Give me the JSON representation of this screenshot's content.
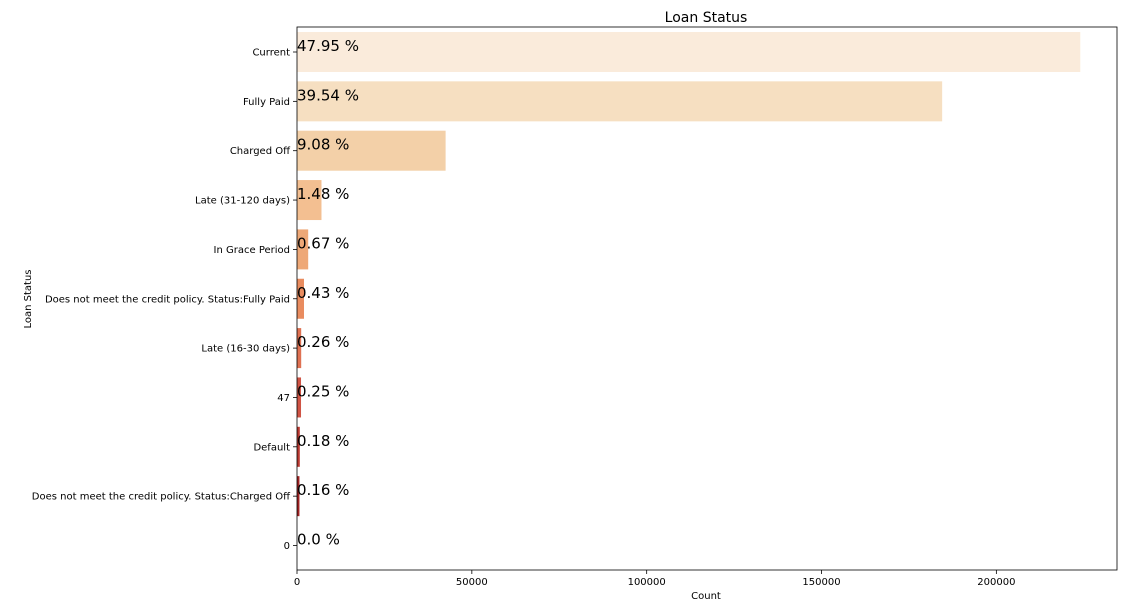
{
  "chart_data": {
    "type": "bar",
    "orientation": "horizontal",
    "title": "Loan Status",
    "xlabel": "Count",
    "ylabel": "Loan Status",
    "xlim": [
      0,
      234500
    ],
    "x_ticks": [
      0,
      50000,
      100000,
      150000,
      200000
    ],
    "grid": false,
    "categories": [
      "Current",
      "Fully Paid",
      "Charged Off",
      "Late (31-120 days)",
      "In Grace Period",
      "Does not meet the credit policy. Status:Fully Paid",
      "Late (16-30 days)",
      "47",
      "Default",
      "Does not meet the credit policy. Status:Charged Off",
      "0"
    ],
    "values": [
      224000,
      184500,
      42500,
      7000,
      3200,
      2000,
      1200,
      1150,
      800,
      700,
      0
    ],
    "labels": [
      "47.95 %",
      "39.54 %",
      "9.08 %",
      "1.48 %",
      "0.67 %",
      "0.43 %",
      "0.26 %",
      "0.25 %",
      "0.18 %",
      "0.16 %",
      "0.0 %"
    ],
    "colors": [
      "#faebdb",
      "#f6dfc1",
      "#f3d0a8",
      "#f3bf91",
      "#eea877",
      "#e98c5f",
      "#df7152",
      "#cf5344",
      "#ba3830",
      "#a12323",
      "#8b0c18"
    ]
  }
}
